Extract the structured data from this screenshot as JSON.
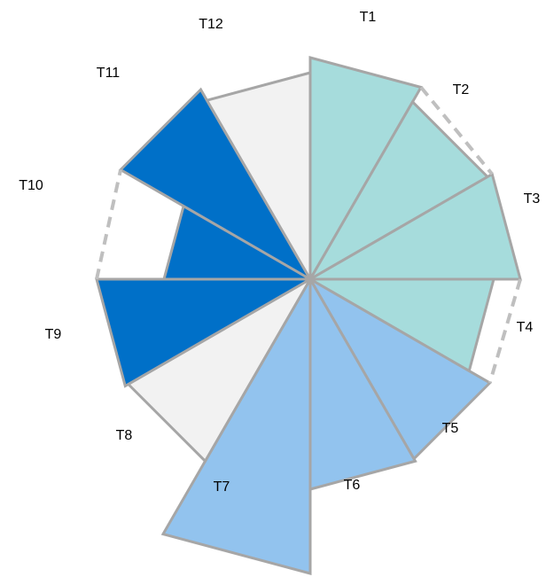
{
  "chart_data": {
    "type": "radial",
    "categories": [
      "T1",
      "T2",
      "T3",
      "T4",
      "T5",
      "T6",
      "T7",
      "T8",
      "T9",
      "T10",
      "T11",
      "T12"
    ],
    "values": [
      250,
      231,
      237,
      207,
      234,
      237,
      332,
      237,
      241,
      165,
      247,
      233
    ],
    "colors": [
      "#a6dcdc",
      "#a6dcdc",
      "#a6dcdc",
      "#a6dcdc",
      "#92c3ee",
      "#92c3ee",
      "#92c3ee",
      "#f2f2f2",
      "#0070c8",
      "#0070c8",
      "#0070c8",
      "#f2f2f2"
    ]
  }
}
